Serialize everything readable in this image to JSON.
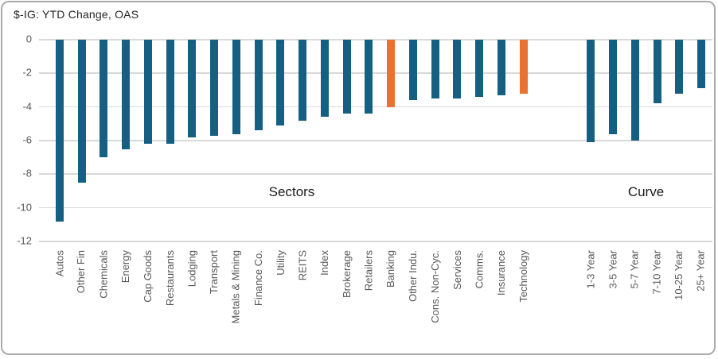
{
  "title": "$-IG: YTD Change, OAS",
  "colors": {
    "bar_default": "#156082",
    "bar_highlight": "#E97132",
    "gridline": "#D9D9D9",
    "axis_text": "#595959",
    "annotation_text": "#1A1A1A",
    "title_text": "#262626",
    "card_border": "#ABABAB",
    "background": "#FFFFFF"
  },
  "chart_data": {
    "type": "bar",
    "title": "$-IG: YTD Change, OAS",
    "xlabel": "",
    "ylabel": "",
    "ylim": [
      -12,
      0
    ],
    "yticks": [
      0,
      -2,
      -4,
      -6,
      -8,
      -10,
      -12
    ],
    "grid": true,
    "legend": false,
    "bar_orientation": "vertical",
    "groups": [
      {
        "label": "Sectors",
        "categories": [
          "Autos",
          "Other Fin",
          "Chemicals",
          "Energy",
          "Cap Goods",
          "Restaurants",
          "Lodging",
          "Transport",
          "Metals & Mining",
          "Finance Co.",
          "Utility",
          "REITS",
          "Index",
          "Brokerage",
          "Retailers",
          "Banking",
          "Other Indu.",
          "Cons. Non-Cyc.",
          "Services",
          "Comms.",
          "Insurance",
          "Technology"
        ],
        "values": [
          -10.8,
          -8.5,
          -7.0,
          -6.5,
          -6.2,
          -6.2,
          -5.8,
          -5.7,
          -5.6,
          -5.4,
          -5.1,
          -4.8,
          -4.6,
          -4.4,
          -4.4,
          -4.0,
          -3.6,
          -3.5,
          -3.5,
          -3.4,
          -3.3,
          -3.2
        ],
        "highlighted": [
          "Banking",
          "Technology"
        ]
      },
      {
        "label": "Curve",
        "categories": [
          "1-3 Year",
          "3-5 Year",
          "5-7 Year",
          "7-10 Year",
          "10-25 Year",
          "25+ Year"
        ],
        "values": [
          -6.1,
          -5.6,
          -6.0,
          -3.8,
          -3.2,
          -2.9
        ],
        "highlighted": []
      }
    ]
  }
}
